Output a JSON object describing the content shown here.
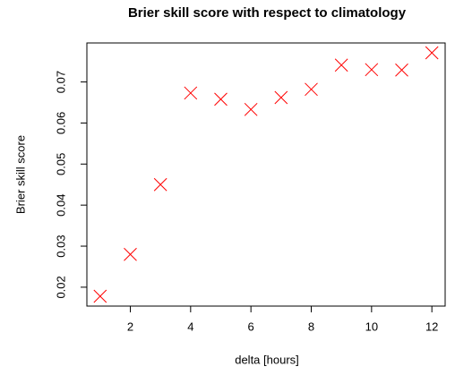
{
  "chart_data": {
    "type": "scatter",
    "title": "Brier skill score with respect to climatology",
    "x_label": "delta [hours]",
    "y_label": "Brier skill score",
    "x": [
      1,
      2,
      3,
      4,
      5,
      6,
      7,
      8,
      9,
      10,
      11,
      12
    ],
    "values": [
      0.0178,
      0.028,
      0.045,
      0.0673,
      0.0658,
      0.0633,
      0.0662,
      0.0682,
      0.0741,
      0.073,
      0.0729,
      0.0771
    ],
    "color": "#ff0000",
    "xlim": [
      0.56,
      12.44
    ],
    "xticks": [
      2,
      4,
      6,
      8,
      10,
      12
    ],
    "ylim": [
      0.0154,
      0.0795
    ],
    "yticks": [
      0.02,
      0.03,
      0.04,
      0.05,
      0.06,
      0.07
    ]
  }
}
